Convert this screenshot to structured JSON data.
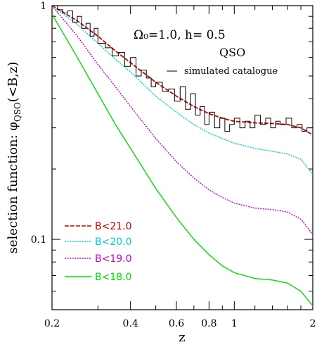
{
  "chart_data": {
    "type": "line",
    "xlabel": "z",
    "ylabel": "selection function: φ",
    "ylabel_sub": "QSO",
    "ylabel_tail": "(<B,z)",
    "x_scale": "log",
    "y_scale": "log",
    "xlim": [
      0.2,
      2.0
    ],
    "ylim": [
      0.05,
      1.0
    ],
    "x_ticks": [
      0.2,
      0.4,
      0.6,
      0.8,
      1,
      2
    ],
    "x_tick_labels": [
      "0.2",
      "0.4",
      "0.6",
      "0.8",
      "1",
      "2"
    ],
    "y_ticks": [
      0.1,
      1
    ],
    "y_tick_labels": [
      "0.1",
      "1"
    ],
    "annotations": {
      "cosmology": "Ω₀=1.0,  h= 0.5",
      "object": "QSO",
      "catalogue_label": "simulated catalogue"
    },
    "series": [
      {
        "name": "B<21.0",
        "color": "#cc0000",
        "style": "dashed",
        "x": [
          0.2,
          0.25,
          0.3,
          0.35,
          0.4,
          0.5,
          0.6,
          0.7,
          0.8,
          0.9,
          1.0,
          1.2,
          1.4,
          1.6,
          1.8,
          2.0
        ],
        "y": [
          1.0,
          0.86,
          0.74,
          0.64,
          0.57,
          0.47,
          0.41,
          0.37,
          0.345,
          0.33,
          0.32,
          0.315,
          0.313,
          0.31,
          0.3,
          0.28
        ]
      },
      {
        "name": "B<20.0",
        "color": "#00cccc",
        "style": "dotted",
        "x": [
          0.2,
          0.25,
          0.3,
          0.35,
          0.4,
          0.5,
          0.6,
          0.7,
          0.8,
          0.9,
          1.0,
          1.2,
          1.4,
          1.6,
          1.8,
          2.0
        ],
        "y": [
          1.0,
          0.83,
          0.69,
          0.59,
          0.52,
          0.41,
          0.35,
          0.31,
          0.285,
          0.27,
          0.258,
          0.245,
          0.238,
          0.232,
          0.22,
          0.19
        ]
      },
      {
        "name": "B<19.0",
        "color": "#cc00cc",
        "style": "dotted",
        "x": [
          0.2,
          0.25,
          0.3,
          0.35,
          0.4,
          0.5,
          0.6,
          0.7,
          0.8,
          0.9,
          1.0,
          1.2,
          1.4,
          1.6,
          1.8,
          2.0
        ],
        "y": [
          1.0,
          0.74,
          0.56,
          0.45,
          0.37,
          0.27,
          0.215,
          0.183,
          0.163,
          0.151,
          0.143,
          0.136,
          0.134,
          0.131,
          0.122,
          0.105
        ]
      },
      {
        "name": "B<18.0",
        "color": "#00dd00",
        "style": "solid",
        "x": [
          0.2,
          0.25,
          0.3,
          0.35,
          0.4,
          0.5,
          0.6,
          0.7,
          0.8,
          0.9,
          1.0,
          1.2,
          1.4,
          1.6,
          1.8,
          2.0
        ],
        "y": [
          0.92,
          0.6,
          0.42,
          0.31,
          0.245,
          0.165,
          0.124,
          0.1,
          0.086,
          0.077,
          0.072,
          0.068,
          0.067,
          0.065,
          0.06,
          0.052
        ]
      }
    ],
    "histogram": {
      "name": "simulated catalogue",
      "color": "#000000",
      "x": [
        0.2,
        0.21,
        0.22,
        0.23,
        0.24,
        0.25,
        0.26,
        0.27,
        0.28,
        0.29,
        0.3,
        0.32,
        0.34,
        0.36,
        0.38,
        0.4,
        0.42,
        0.44,
        0.46,
        0.48,
        0.5,
        0.53,
        0.56,
        0.59,
        0.62,
        0.65,
        0.68,
        0.71,
        0.74,
        0.77,
        0.8,
        0.84,
        0.88,
        0.92,
        0.96,
        1.0,
        1.05,
        1.1,
        1.15,
        1.2,
        1.26,
        1.32,
        1.38,
        1.44,
        1.5,
        1.58,
        1.66,
        1.74,
        1.82,
        1.9,
        2.0
      ],
      "y": [
        1.0,
        0.96,
        0.93,
        0.95,
        0.85,
        0.9,
        0.8,
        0.84,
        0.74,
        0.8,
        0.69,
        0.66,
        0.61,
        0.63,
        0.55,
        0.6,
        0.5,
        0.53,
        0.49,
        0.45,
        0.47,
        0.43,
        0.44,
        0.39,
        0.45,
        0.36,
        0.42,
        0.34,
        0.37,
        0.31,
        0.35,
        0.3,
        0.33,
        0.29,
        0.31,
        0.33,
        0.3,
        0.32,
        0.3,
        0.34,
        0.31,
        0.33,
        0.3,
        0.32,
        0.31,
        0.33,
        0.3,
        0.31,
        0.29,
        0.3,
        0.28
      ]
    },
    "legend_position": "bottom-left"
  }
}
